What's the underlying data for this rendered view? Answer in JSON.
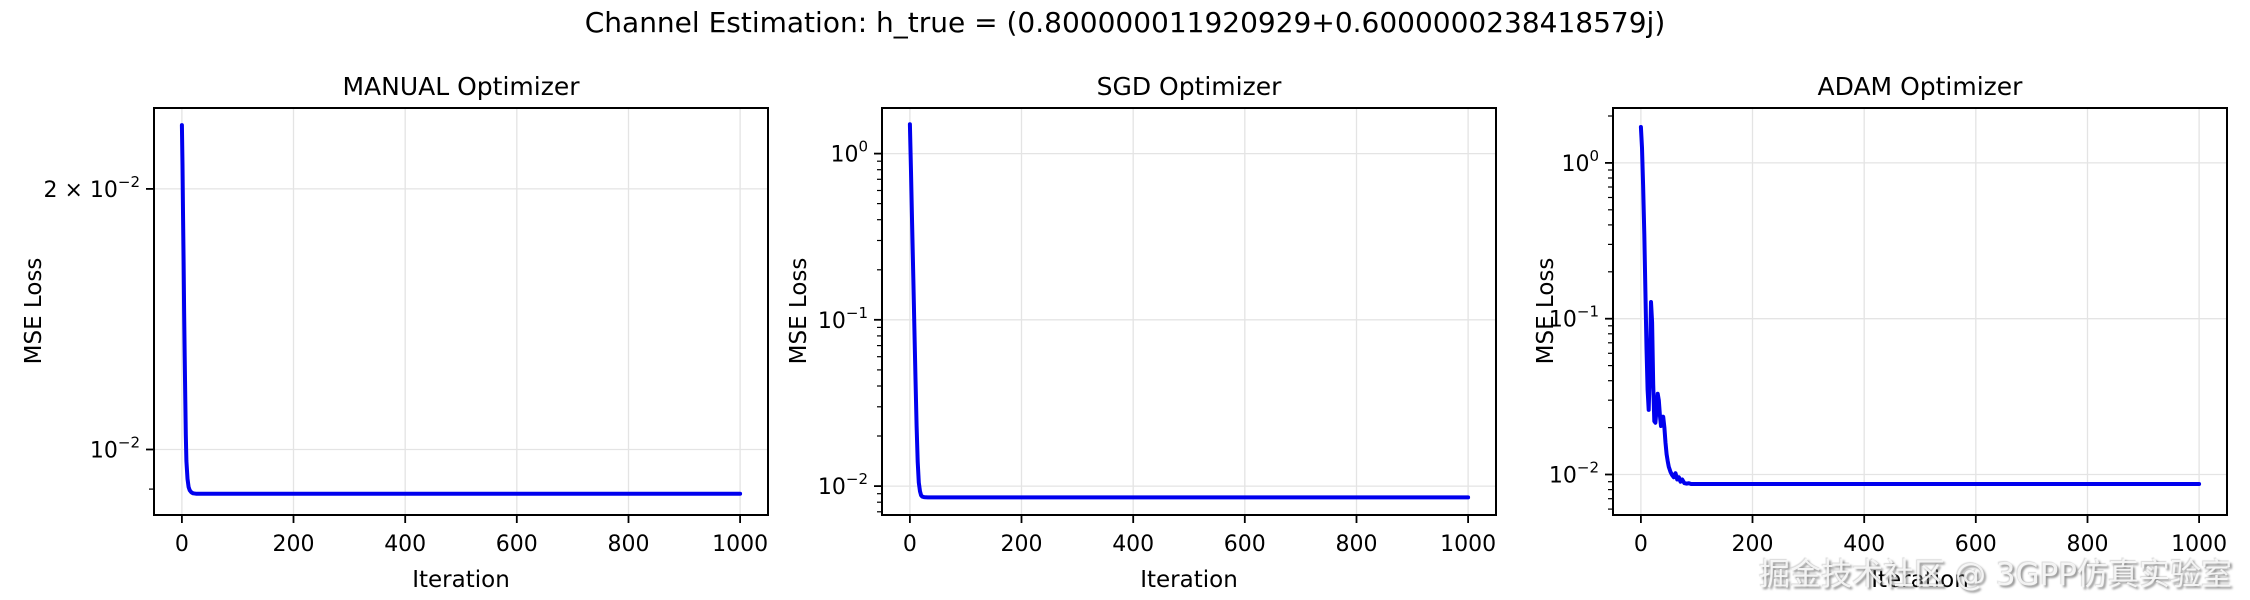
{
  "figure": {
    "suptitle": "Channel Estimation: h_true = (0.800000011920929+0.6000000238418579j)",
    "watermark": "掘金技术社区 @ 3GPP仿真实验室",
    "background": "#ffffff",
    "grid_color": "#e4e4e4",
    "spine_color": "#000000",
    "line_color": "#0000ee"
  },
  "chart_data": [
    {
      "type": "line",
      "title": "MANUAL Optimizer",
      "xlabel": "Iteration",
      "ylabel": "MSE Loss",
      "line_color": "#0000ee",
      "grid": true,
      "yscale": "log",
      "xlim": [
        -50,
        1050
      ],
      "xticks": [
        0,
        200,
        400,
        600,
        800,
        1000
      ],
      "ylim": [
        0.0084,
        0.0248
      ],
      "yticks": [
        {
          "value": 0.02,
          "coeff": "2",
          "exp": "-2"
        },
        {
          "value": 0.01,
          "coeff": "",
          "exp": "-2"
        }
      ],
      "x": [
        0,
        1,
        2,
        3,
        4,
        5,
        6,
        7,
        8,
        10,
        12,
        14,
        17,
        20,
        25,
        30,
        40,
        60,
        100,
        200,
        400,
        600,
        800,
        1000
      ],
      "y": [
        0.0237,
        0.0213,
        0.0188,
        0.0165,
        0.0145,
        0.0128,
        0.0114,
        0.0104,
        0.0097,
        0.00925,
        0.00905,
        0.00897,
        0.00892,
        0.0089,
        0.00889,
        0.00889,
        0.00889,
        0.00889,
        0.00889,
        0.00889,
        0.00889,
        0.00889,
        0.00889,
        0.00889
      ]
    },
    {
      "type": "line",
      "title": "SGD Optimizer",
      "xlabel": "Iteration",
      "ylabel": "MSE Loss",
      "line_color": "#0000ee",
      "grid": true,
      "yscale": "log",
      "xlim": [
        -50,
        1050
      ],
      "xticks": [
        0,
        200,
        400,
        600,
        800,
        1000
      ],
      "ylim": [
        0.0067,
        1.88
      ],
      "yticks": [
        {
          "value": 1,
          "coeff": "",
          "exp": "0"
        },
        {
          "value": 0.1,
          "coeff": "",
          "exp": "-1"
        },
        {
          "value": 0.01,
          "coeff": "",
          "exp": "-2"
        }
      ],
      "x": [
        0,
        2,
        4,
        6,
        8,
        10,
        12,
        14,
        16,
        18,
        20,
        22,
        25,
        28,
        32,
        40,
        60,
        100,
        200,
        400,
        600,
        800,
        1000
      ],
      "y": [
        1.5,
        0.78,
        0.38,
        0.18,
        0.088,
        0.044,
        0.023,
        0.014,
        0.0105,
        0.0093,
        0.0088,
        0.00865,
        0.00858,
        0.00856,
        0.00855,
        0.00855,
        0.00855,
        0.00855,
        0.00855,
        0.00855,
        0.00855,
        0.00855,
        0.00855
      ]
    },
    {
      "type": "line",
      "title": "ADAM Optimizer",
      "xlabel": "Iteration",
      "ylabel": "MSE Loss",
      "line_color": "#0000ee",
      "grid": true,
      "yscale": "log",
      "xlim": [
        -50,
        1050
      ],
      "xticks": [
        0,
        200,
        400,
        600,
        800,
        1000
      ],
      "ylim": [
        0.0055,
        2.25
      ],
      "yticks": [
        {
          "value": 1,
          "coeff": "",
          "exp": "0"
        },
        {
          "value": 0.1,
          "coeff": "",
          "exp": "-1"
        },
        {
          "value": 0.01,
          "coeff": "",
          "exp": "-2"
        }
      ],
      "x": [
        0,
        2,
        4,
        6,
        8,
        10,
        12,
        14,
        16,
        18,
        20,
        22,
        24,
        26,
        28,
        30,
        32,
        34,
        36,
        38,
        40,
        42,
        44,
        46,
        48,
        50,
        53,
        56,
        59,
        62,
        65,
        68,
        71,
        74,
        78,
        82,
        86,
        90,
        95,
        100,
        120,
        200,
        400,
        600,
        800,
        1000
      ],
      "y": [
        1.7,
        1.25,
        0.72,
        0.35,
        0.15,
        0.065,
        0.035,
        0.026,
        0.048,
        0.128,
        0.095,
        0.038,
        0.022,
        0.0215,
        0.026,
        0.033,
        0.03,
        0.024,
        0.0205,
        0.022,
        0.0235,
        0.02,
        0.016,
        0.0135,
        0.0122,
        0.0112,
        0.0104,
        0.0099,
        0.0096,
        0.0102,
        0.0093,
        0.0096,
        0.009,
        0.0093,
        0.0088,
        0.00875,
        0.0088,
        0.0087,
        0.0087,
        0.0087,
        0.0087,
        0.0087,
        0.0087,
        0.0087,
        0.0087,
        0.0087
      ]
    }
  ]
}
